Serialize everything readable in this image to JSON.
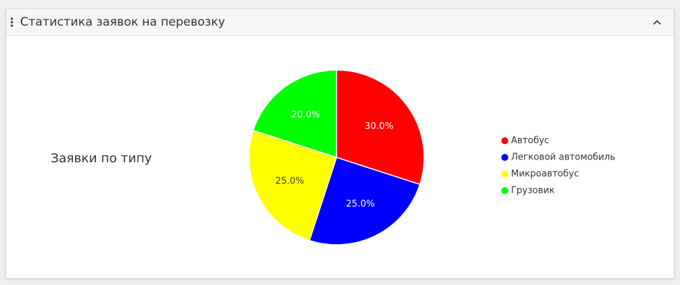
{
  "panel": {
    "title": "Статистика заявок на перевозку"
  },
  "chart_data": {
    "type": "pie",
    "title": "Заявки по типу",
    "categories": [
      "Автобус",
      "Легковой автомобиль",
      "Микроавтобус",
      "Грузовик"
    ],
    "values": [
      30,
      25,
      25,
      20
    ],
    "value_labels": [
      "30.0%",
      "25.0%",
      "25.0%",
      "20.0%"
    ],
    "colors": [
      "#ff0000",
      "#0000ff",
      "#ffff00",
      "#00ff00"
    ],
    "legend": "right"
  }
}
